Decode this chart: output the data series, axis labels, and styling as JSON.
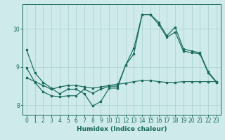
{
  "xlabel": "Humidex (Indice chaleur)",
  "background_color": "#ceeaea",
  "line_color": "#1a6b5e",
  "grid_color": "#aed4d4",
  "xlim": [
    -0.5,
    23.5
  ],
  "ylim": [
    7.75,
    10.65
  ],
  "yticks": [
    8,
    9,
    10
  ],
  "xticks": [
    0,
    1,
    2,
    3,
    4,
    5,
    6,
    7,
    8,
    9,
    10,
    11,
    12,
    13,
    14,
    15,
    16,
    17,
    18,
    19,
    20,
    21,
    22,
    23
  ],
  "line1": [
    9.45,
    8.85,
    8.6,
    8.45,
    8.3,
    8.42,
    8.42,
    8.3,
    7.98,
    8.1,
    8.45,
    8.45,
    9.05,
    9.5,
    10.38,
    10.38,
    10.18,
    9.82,
    10.05,
    9.48,
    9.42,
    9.38,
    8.88,
    8.62
  ],
  "line2": [
    8.72,
    8.62,
    8.52,
    8.42,
    8.48,
    8.52,
    8.52,
    8.48,
    8.45,
    8.48,
    8.52,
    8.55,
    8.58,
    8.62,
    8.65,
    8.65,
    8.62,
    8.6,
    8.6,
    8.62,
    8.62,
    8.62,
    8.62,
    8.62
  ],
  "line3": [
    8.98,
    8.6,
    8.35,
    8.25,
    8.22,
    8.25,
    8.25,
    8.42,
    8.32,
    8.42,
    8.5,
    8.5,
    9.05,
    9.35,
    10.38,
    10.38,
    10.12,
    9.78,
    9.92,
    9.42,
    9.38,
    9.35,
    8.85,
    8.6
  ]
}
